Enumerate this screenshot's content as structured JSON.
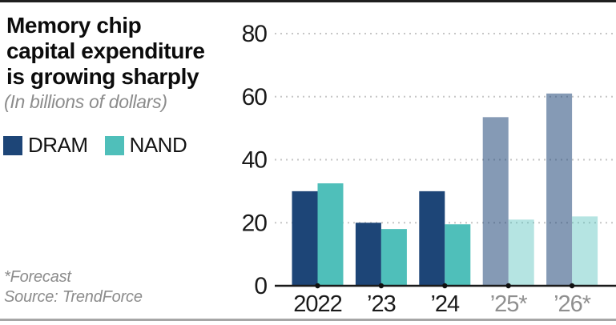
{
  "header": {
    "title_lines": [
      "Memory chip",
      "capital expenditure",
      "is growing sharply"
    ],
    "subtitle": "(In billions of dollars)"
  },
  "footnote": {
    "forecast_note": "*Forecast",
    "source": "Source: TrendForce"
  },
  "colors": {
    "dram": "#1d4577",
    "nand": "#4fbfba",
    "dram_forecast": "#8494bd",
    "nand_forecast": "#b7e2dc",
    "gridline": "#c6c6c6",
    "axis": "#1a1a1a",
    "muted_text": "#8c8c8c"
  },
  "chart_data": {
    "type": "bar",
    "title": "Memory chip capital expenditure is growing sharply",
    "subtitle": "(In billions of dollars)",
    "categories": [
      "2022",
      "’23",
      "’24",
      "’25*",
      "’26*"
    ],
    "series": [
      {
        "name": "DRAM",
        "values": [
          30,
          20,
          30,
          53.5,
          61
        ],
        "color": "#1d4577",
        "forecast_color": "#8494bd",
        "forecast_opacity": 0.54
      },
      {
        "name": "NAND",
        "values": [
          32.5,
          18,
          19.5,
          21,
          22
        ],
        "color": "#4fbfba",
        "forecast_color": "#b7e2dc",
        "forecast_opacity": 0.42
      }
    ],
    "forecast_from_index": 3,
    "ylim": [
      0,
      80
    ],
    "yticks": [
      0,
      20,
      40,
      60,
      80
    ],
    "xlabel": "",
    "ylabel": "",
    "grid": "horizontal-dotted",
    "legend_position": "top-left",
    "source": "TrendForce",
    "forecast_note": "*Forecast"
  }
}
